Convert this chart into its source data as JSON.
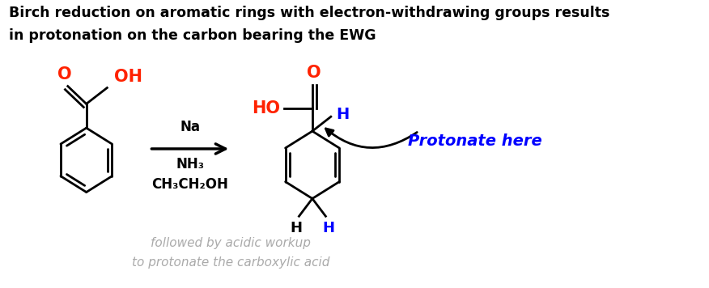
{
  "title_line1": "Birch reduction on aromatic rings with electron-withdrawing groups results",
  "title_line2": "in protonation on the carbon bearing the EWG",
  "title_fontsize": 12.5,
  "bg_color": "#ffffff",
  "reagents_line1": "Na",
  "reagents_line2": "NH₃",
  "reagents_line3": "CH₃CH₂OH",
  "reagents_fontsize": 12,
  "note_line1": "followed by acidic workup",
  "note_line2": "to protonate the carboxylic acid",
  "note_color": "#aaaaaa",
  "note_fontsize": 11,
  "protonate_text": "Protonate here",
  "protonate_color": "#0000ff",
  "protonate_fontsize": 14,
  "red_color": "#ff2200",
  "blue_color": "#0000ff",
  "black_color": "#000000"
}
